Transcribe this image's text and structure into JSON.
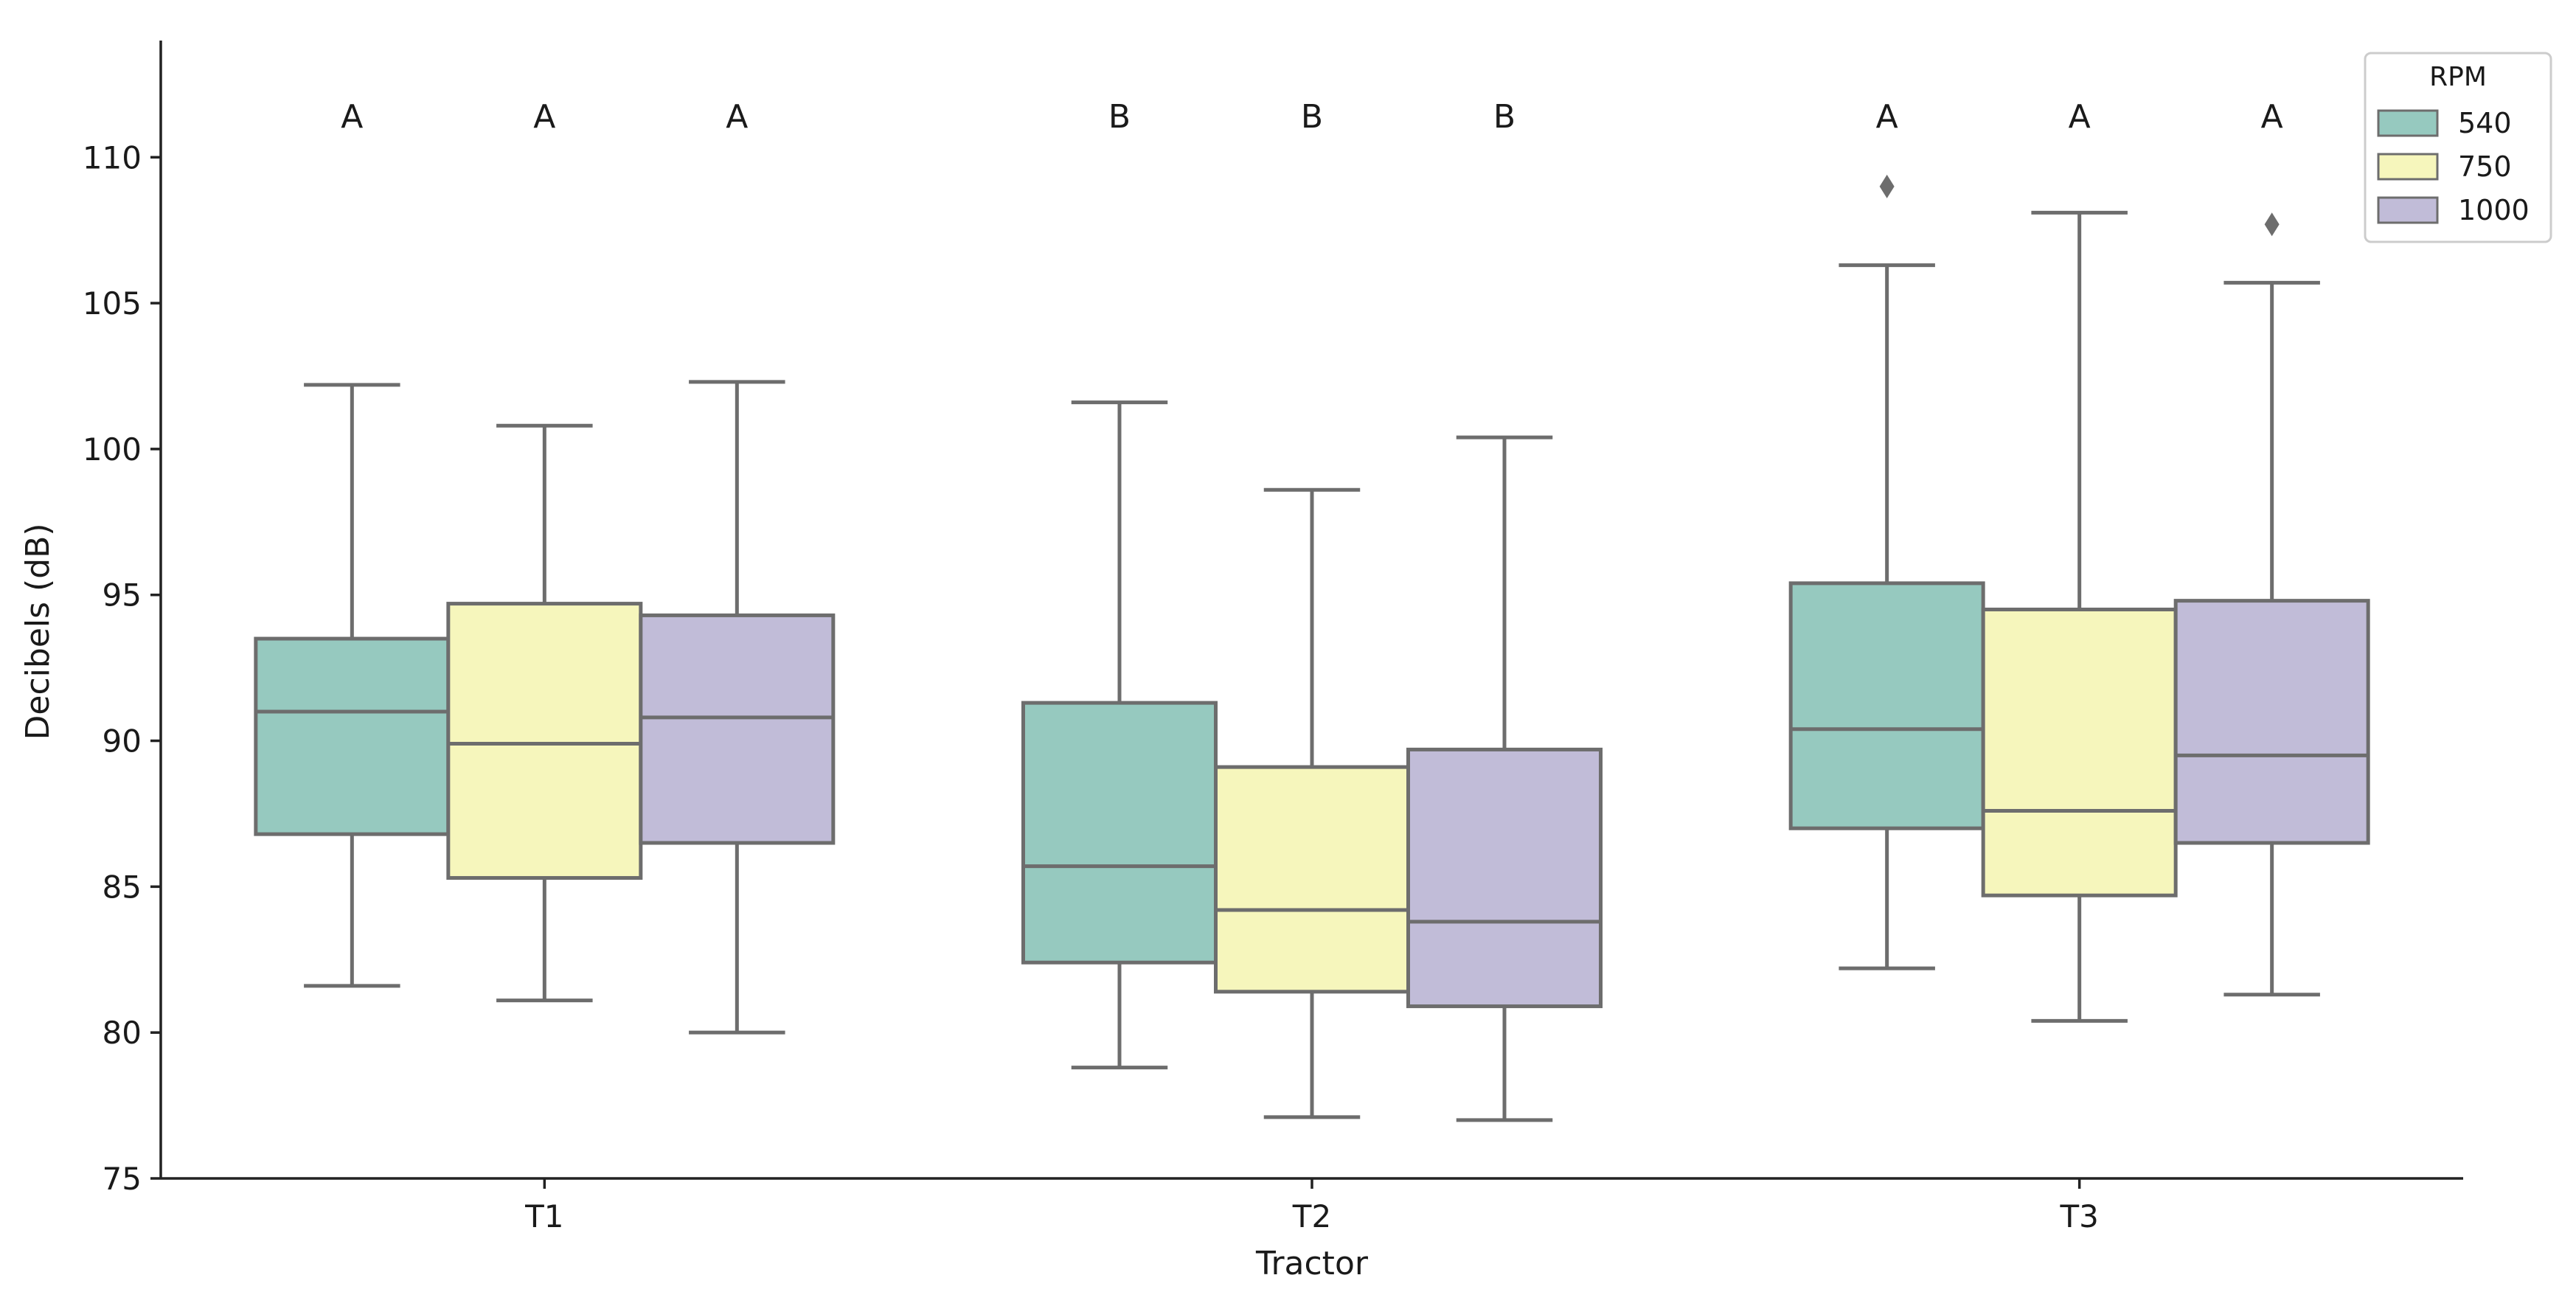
{
  "chart_data": {
    "type": "box",
    "xlabel": "Tractor",
    "ylabel": "Decibels (dB)",
    "ylim": [
      75,
      114
    ],
    "yticks": [
      75,
      80,
      85,
      90,
      95,
      100,
      105,
      110
    ],
    "categories": [
      "T1",
      "T2",
      "T3"
    ],
    "legend": {
      "title": "RPM",
      "position": "top-right",
      "entries": [
        "540",
        "750",
        "1000"
      ]
    },
    "colors": {
      "540": "#96c9bf",
      "750": "#f6f6bc",
      "1000": "#c1bcd8",
      "line": "#6d6d6d"
    },
    "series": [
      {
        "name": "540",
        "boxes": [
          {
            "category": "T1",
            "whisker_low": 81.6,
            "q1": 86.8,
            "median": 91.0,
            "q3": 93.5,
            "whisker_high": 102.2,
            "outliers": [],
            "significance": "A"
          },
          {
            "category": "T2",
            "whisker_low": 78.8,
            "q1": 82.4,
            "median": 85.7,
            "q3": 91.3,
            "whisker_high": 101.6,
            "outliers": [],
            "significance": "B"
          },
          {
            "category": "T3",
            "whisker_low": 82.2,
            "q1": 87.0,
            "median": 90.4,
            "q3": 95.4,
            "whisker_high": 106.3,
            "outliers": [
              109.0
            ],
            "significance": "A"
          }
        ]
      },
      {
        "name": "750",
        "boxes": [
          {
            "category": "T1",
            "whisker_low": 81.1,
            "q1": 85.3,
            "median": 89.9,
            "q3": 94.7,
            "whisker_high": 100.8,
            "outliers": [],
            "significance": "A"
          },
          {
            "category": "T2",
            "whisker_low": 77.1,
            "q1": 81.4,
            "median": 84.2,
            "q3": 89.1,
            "whisker_high": 98.6,
            "outliers": [],
            "significance": "B"
          },
          {
            "category": "T3",
            "whisker_low": 80.4,
            "q1": 84.7,
            "median": 87.6,
            "q3": 94.5,
            "whisker_high": 108.1,
            "outliers": [],
            "significance": "A"
          }
        ]
      },
      {
        "name": "1000",
        "boxes": [
          {
            "category": "T1",
            "whisker_low": 80.0,
            "q1": 86.5,
            "median": 90.8,
            "q3": 94.3,
            "whisker_high": 102.3,
            "outliers": [],
            "significance": "A"
          },
          {
            "category": "T2",
            "whisker_low": 77.0,
            "q1": 80.9,
            "median": 83.8,
            "q3": 89.7,
            "whisker_high": 100.4,
            "outliers": [],
            "significance": "B"
          },
          {
            "category": "T3",
            "whisker_low": 81.3,
            "q1": 86.5,
            "median": 89.5,
            "q3": 94.8,
            "whisker_high": 105.7,
            "outliers": [
              107.7
            ],
            "significance": "A"
          }
        ]
      }
    ]
  }
}
